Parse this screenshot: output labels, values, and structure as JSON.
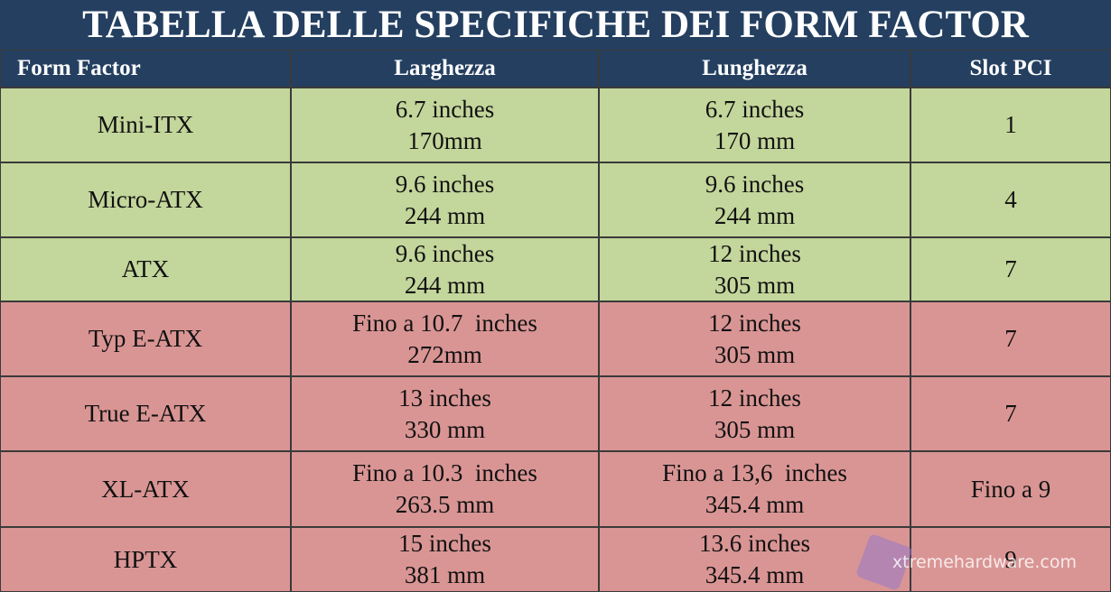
{
  "title": "TABELLA DELLE SPECIFICHE DEI FORM FACTOR",
  "table": {
    "header": [
      "Form Factor",
      "Larghezza",
      "Lunghezza",
      "Slot PCI"
    ],
    "rows": [
      {
        "color": "#c3d69b",
        "cells": [
          [
            "Mini-ITX"
          ],
          [
            "6.7 inches",
            "170mm"
          ],
          [
            "6.7 inches",
            "170 mm"
          ],
          [
            "1"
          ]
        ]
      },
      {
        "color": "#c3d69b",
        "cells": [
          [
            "Micro-ATX"
          ],
          [
            "9.6 inches",
            "244 mm"
          ],
          [
            "9.6 inches",
            "244 mm"
          ],
          [
            "4"
          ]
        ]
      },
      {
        "color": "#c3d69b",
        "cells": [
          [
            "ATX"
          ],
          [
            "9.6 inches",
            "244 mm"
          ],
          [
            "12 inches",
            "305 mm"
          ],
          [
            "7"
          ]
        ]
      },
      {
        "color": "#d99594",
        "cells": [
          [
            "Typ E-ATX"
          ],
          [
            "Fino a 10.7  inches",
            "272mm"
          ],
          [
            "12 inches",
            "305 mm"
          ],
          [
            "7"
          ]
        ]
      },
      {
        "color": "#d99594",
        "cells": [
          [
            "True E-ATX"
          ],
          [
            "13 inches",
            "330 mm"
          ],
          [
            "12 inches",
            "305 mm"
          ],
          [
            "7"
          ]
        ]
      },
      {
        "color": "#d99594",
        "cells": [
          [
            "XL-ATX"
          ],
          [
            "Fino a 10.3  inches",
            "263.5 mm"
          ],
          [
            "Fino a 13,6  inches",
            "345.4 mm"
          ],
          [
            "Fino a 9"
          ]
        ]
      },
      {
        "color": "#d99594",
        "cells": [
          [
            "HPTX"
          ],
          [
            "15 inches",
            "381 mm"
          ],
          [
            "13.6 inches",
            "345.4 mm"
          ],
          [
            "9"
          ]
        ]
      }
    ]
  },
  "watermark": "xtremehardware.com"
}
